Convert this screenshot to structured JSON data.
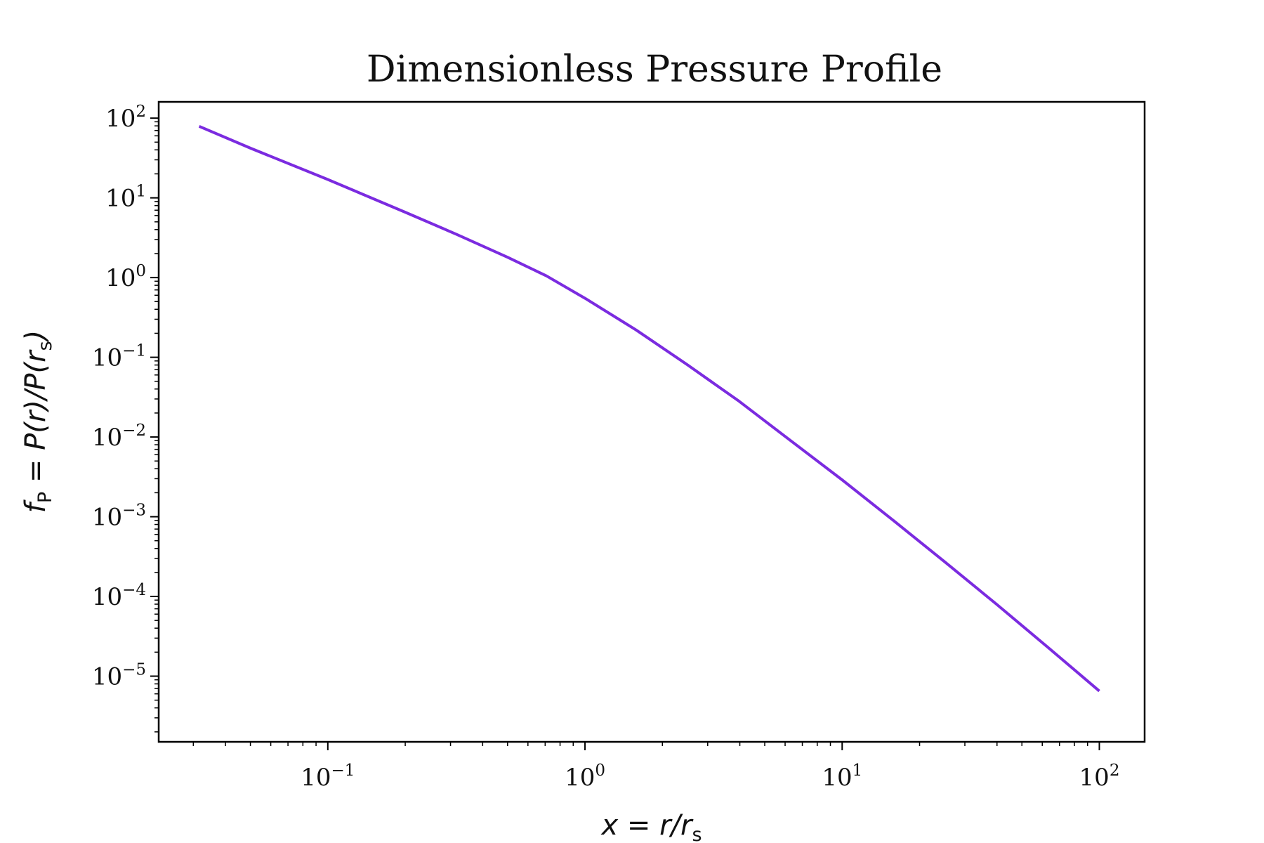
{
  "chart_data": {
    "type": "line",
    "title": "Dimensionless Pressure Profile",
    "xlabel": {
      "main": "x = r/r",
      "sub": "s"
    },
    "ylabel": {
      "main1": "f",
      "sub1": "P",
      "main2": " = P(r)/P(r",
      "sub2": "s",
      "main3": ")"
    },
    "x_scale": "log",
    "y_scale": "log",
    "xlim": [
      0.022,
      150
    ],
    "ylim": [
      1.5e-06,
      160
    ],
    "x_ticks": [
      {
        "value": 0.1,
        "base": "10",
        "exp": "−1"
      },
      {
        "value": 1,
        "base": "10",
        "exp": "0"
      },
      {
        "value": 10,
        "base": "10",
        "exp": "1"
      },
      {
        "value": 100,
        "base": "10",
        "exp": "2"
      }
    ],
    "y_ticks": [
      {
        "value": 100,
        "base": "10",
        "exp": "2"
      },
      {
        "value": 10,
        "base": "10",
        "exp": "1"
      },
      {
        "value": 1,
        "base": "10",
        "exp": "0"
      },
      {
        "value": 0.1,
        "base": "10",
        "exp": "−1"
      },
      {
        "value": 0.01,
        "base": "10",
        "exp": "−2"
      },
      {
        "value": 0.001,
        "base": "10",
        "exp": "−3"
      },
      {
        "value": 0.0001,
        "base": "10",
        "exp": "−4"
      },
      {
        "value": 1e-05,
        "base": "10",
        "exp": "−5"
      }
    ],
    "grid": false,
    "series": [
      {
        "color": "#7b2be0",
        "x": [
          0.0316,
          0.05,
          0.1,
          0.2,
          0.316,
          0.5,
          0.708,
          1,
          1.58,
          2.51,
          3.98,
          6.31,
          10,
          15.8,
          25.1,
          39.8,
          63.1,
          100
        ],
        "y": [
          79,
          42,
          17,
          6.6,
          3.5,
          1.8,
          1.05,
          0.55,
          0.22,
          0.08,
          0.028,
          0.009,
          0.0029,
          0.0009,
          0.00027,
          8e-05,
          2.3e-05,
          6.5e-06
        ]
      }
    ]
  }
}
